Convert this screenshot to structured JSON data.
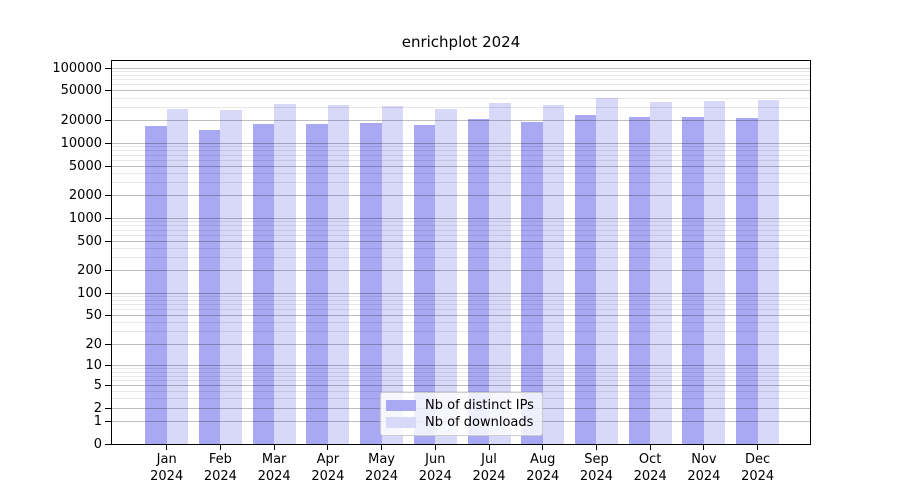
{
  "chart_data": {
    "type": "bar",
    "title": "enrichplot 2024",
    "categories": [
      "Jan 2024",
      "Feb 2024",
      "Mar 2024",
      "Apr 2024",
      "May 2024",
      "Jun 2024",
      "Jul 2024",
      "Aug 2024",
      "Sep 2024",
      "Oct 2024",
      "Nov 2024",
      "Dec 2024"
    ],
    "series": [
      {
        "name": "Nb of distinct IPs",
        "key": "ips",
        "color": "#a8a8f3",
        "values": [
          17000,
          15000,
          18000,
          18000,
          18500,
          17500,
          21000,
          19500,
          24000,
          22500,
          22500,
          22000
        ]
      },
      {
        "name": "Nb of downloads",
        "key": "downloads",
        "color": "#d8d8f9",
        "values": [
          29000,
          28000,
          33500,
          32500,
          31500,
          29000,
          34500,
          32000,
          40000,
          36000,
          37000,
          38000
        ]
      }
    ],
    "y_ticks": [
      0,
      1,
      2,
      5,
      10,
      20,
      50,
      100,
      200,
      500,
      1000,
      2000,
      5000,
      10000,
      20000,
      50000,
      100000
    ],
    "y_scale": "log1p",
    "ylim": [
      0,
      125000
    ],
    "xlabel": "",
    "ylabel": "",
    "grid": "horizontal major+minor",
    "legend_position": "bottom-center"
  },
  "colors": {
    "bar_ips": "#a8a8f3",
    "bar_downloads": "#d8d8f9",
    "axis": "#000000",
    "grid_major": "rgba(0,0,0,0.25)",
    "grid_minor": "rgba(0,0,0,0.09)",
    "legend_border": "#cccccc"
  }
}
